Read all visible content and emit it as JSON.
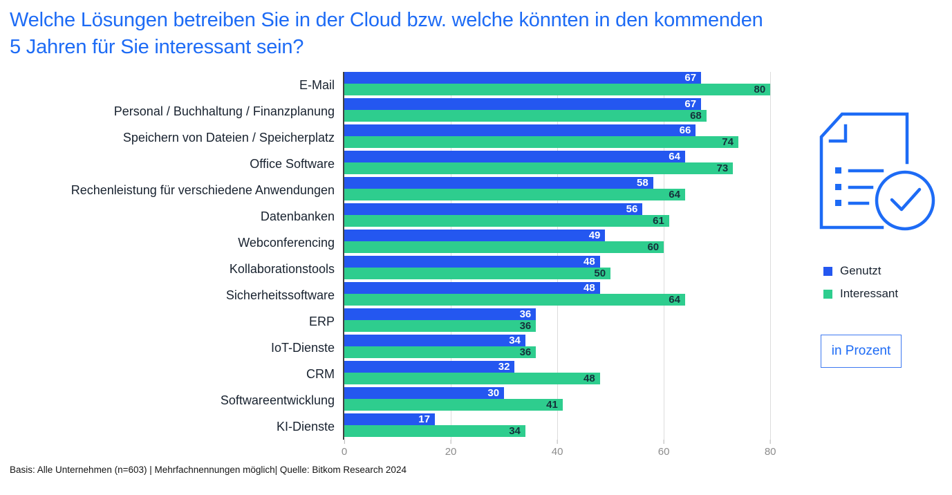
{
  "title": {
    "line1": "Welche Lösungen betreiben Sie in der Cloud bzw. welche könnten in den kommenden",
    "line2": "5 Jahren für Sie interessant sein?"
  },
  "chart_data": {
    "type": "bar",
    "orientation": "horizontal",
    "title": "Welche Lösungen betreiben Sie in der Cloud bzw. welche könnten in den kommenden 5 Jahren für Sie interessant sein?",
    "categories": [
      "E-Mail",
      "Personal / Buchhaltung / Finanzplanung",
      "Speichern von Dateien / Speicherplatz",
      "Office Software",
      "Rechenleistung für verschiedene Anwendungen",
      "Datenbanken",
      "Webconferencing",
      "Kollaborationstools",
      "Sicherheitssoftware",
      "ERP",
      "IoT-Dienste",
      "CRM",
      "Softwareentwicklung",
      "KI-Dienste"
    ],
    "series": [
      {
        "name": "Genutzt",
        "color": "#2457f0",
        "values": [
          67,
          67,
          66,
          64,
          58,
          56,
          49,
          48,
          48,
          36,
          34,
          32,
          30,
          17
        ]
      },
      {
        "name": "Interessant",
        "color": "#2ecd8e",
        "values": [
          80,
          68,
          74,
          73,
          64,
          61,
          60,
          50,
          64,
          36,
          36,
          48,
          41,
          34
        ]
      }
    ],
    "x_ticks": [
      0,
      20,
      40,
      60,
      80
    ],
    "xlim": [
      0,
      84
    ],
    "unit": "Prozent",
    "value_labels": "inside-end",
    "grid": "vertical",
    "legend_position": "right"
  },
  "legend": {
    "items": [
      {
        "label": "Genutzt",
        "color": "#2457f0"
      },
      {
        "label": "Interessant",
        "color": "#2ecd8e"
      }
    ]
  },
  "unit_box": {
    "label": "in Prozent"
  },
  "icon": {
    "name": "document-check",
    "color": "#1d6bf5"
  },
  "footer": {
    "text": "Basis: Alle Unternehmen (n=603) | Mehrfachnennungen möglich| Quelle: Bitkom Research 2024"
  },
  "colors": {
    "title": "#1d6bf5",
    "bar_blue": "#2457f0",
    "bar_green": "#2ecd8e",
    "category_text": "#18222f",
    "tick_text": "#8c8c8c",
    "gridline": "#dcdcdc",
    "axis_line": "#404040",
    "value_on_blue": "#ffffff",
    "value_on_green": "#15313b",
    "background": "#ffffff"
  }
}
